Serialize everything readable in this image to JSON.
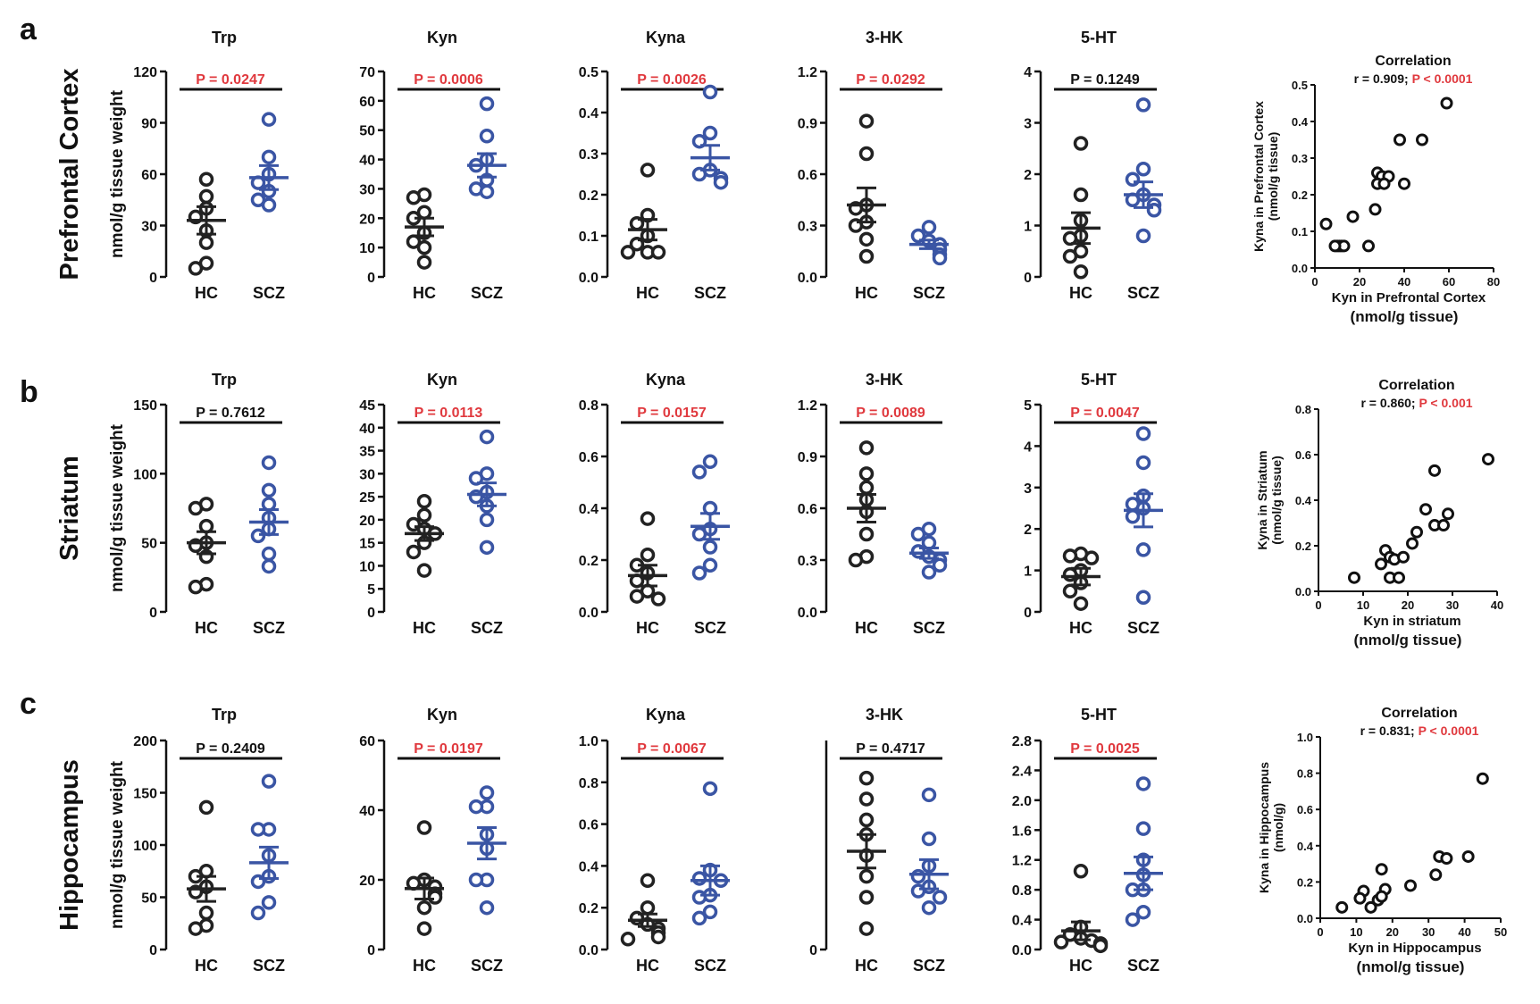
{
  "colors": {
    "hc": "#222222",
    "scz": "#3a55a4",
    "sig": "#e0393e",
    "ns": "#111111"
  },
  "rows": [
    {
      "letter": "a",
      "region": "Prefrontal Cortex",
      "ylabel": "nmol/g tissue weight",
      "corr": {
        "title": "Correlation",
        "r_text": "r = 0.909;",
        "p_text": "P < 0.0001",
        "xlabel": "Kyn in Prefrontal Cortex",
        "xlabel2": "(nmol/g tissue)",
        "ylabel": "Kyna in Prefrontal Cortex",
        "ylabel2": "(nmol/g tissue)"
      }
    },
    {
      "letter": "b",
      "region": "Striatum",
      "ylabel": "nmol/g tissue weight",
      "corr": {
        "title": "Correlation",
        "r_text": "r = 0.860;",
        "p_text": "P < 0.001",
        "xlabel": "Kyn in striatum",
        "xlabel2": "(nmol/g tissue)",
        "ylabel": "Kyna in Striatum",
        "ylabel2": "(nmol/g tissue)"
      }
    },
    {
      "letter": "c",
      "region": "Hippocampus",
      "ylabel": "nmol/g tissue weight",
      "corr": {
        "title": "Correlation",
        "r_text": "r = 0.831;",
        "p_text": "P < 0.0001",
        "xlabel": "Kyn in Hippocampus",
        "xlabel2": "(nmol/g tissue)",
        "ylabel": "Kyna in Hippocampus",
        "ylabel2": "(nmol/g)"
      }
    }
  ],
  "chart_data": [
    {
      "type": "scatter",
      "row": 0,
      "title": "Trp",
      "categories": [
        "HC",
        "SCZ"
      ],
      "ylim": [
        0,
        120
      ],
      "yticks": [
        "0",
        "30",
        "60",
        "90",
        "120"
      ],
      "p_text": "P = 0.0247",
      "significant": true,
      "series": [
        {
          "name": "HC",
          "values": [
            57,
            47,
            40,
            35,
            27,
            20,
            8,
            5
          ],
          "mean": 33,
          "sem": 8
        },
        {
          "name": "SCZ",
          "values": [
            92,
            70,
            60,
            55,
            50,
            45,
            42
          ],
          "mean": 58,
          "sem": 7
        }
      ]
    },
    {
      "type": "scatter",
      "row": 0,
      "title": "Kyn",
      "categories": [
        "HC",
        "SCZ"
      ],
      "ylim": [
        0,
        70
      ],
      "yticks": [
        "0",
        "10",
        "20",
        "30",
        "40",
        "50",
        "60",
        "70"
      ],
      "p_text": "P = 0.0006",
      "significant": true,
      "series": [
        {
          "name": "HC",
          "values": [
            28,
            27,
            22,
            20,
            15,
            12,
            10,
            5
          ],
          "mean": 17,
          "sem": 3
        },
        {
          "name": "SCZ",
          "values": [
            59,
            48,
            40,
            38,
            33,
            30,
            29
          ],
          "mean": 38,
          "sem": 4
        }
      ]
    },
    {
      "type": "scatter",
      "row": 0,
      "title": "Kyna",
      "categories": [
        "HC",
        "SCZ"
      ],
      "ylim": [
        0,
        0.5
      ],
      "yticks": [
        "0.0",
        "0.1",
        "0.2",
        "0.3",
        "0.4",
        "0.5"
      ],
      "p_text": "P = 0.0026",
      "significant": true,
      "series": [
        {
          "name": "HC",
          "values": [
            0.26,
            0.15,
            0.13,
            0.1,
            0.08,
            0.06,
            0.06,
            0.06
          ],
          "mean": 0.115,
          "sem": 0.025
        },
        {
          "name": "SCZ",
          "values": [
            0.45,
            0.35,
            0.33,
            0.26,
            0.25,
            0.24,
            0.23
          ],
          "mean": 0.29,
          "sem": 0.03
        }
      ]
    },
    {
      "type": "scatter",
      "row": 0,
      "title": "3-HK",
      "categories": [
        "HC",
        "SCZ"
      ],
      "ylim": [
        0,
        1.2
      ],
      "yticks": [
        "0.0",
        "0.3",
        "0.6",
        "0.9",
        "1.2"
      ],
      "p_text": "P = 0.0292",
      "significant": true,
      "series": [
        {
          "name": "HC",
          "values": [
            0.91,
            0.72,
            0.42,
            0.4,
            0.32,
            0.3,
            0.22,
            0.12
          ],
          "mean": 0.42,
          "sem": 0.1
        },
        {
          "name": "SCZ",
          "values": [
            0.29,
            0.24,
            0.21,
            0.19,
            0.16,
            0.13,
            0.11
          ],
          "mean": 0.19,
          "sem": 0.025
        }
      ]
    },
    {
      "type": "scatter",
      "row": 0,
      "title": "5-HT",
      "categories": [
        "HC",
        "SCZ"
      ],
      "ylim": [
        0,
        4
      ],
      "yticks": [
        "0",
        "1",
        "2",
        "3",
        "4"
      ],
      "p_text": "P = 0.1249",
      "significant": false,
      "series": [
        {
          "name": "HC",
          "values": [
            2.6,
            1.6,
            1.1,
            0.8,
            0.75,
            0.5,
            0.4,
            0.1
          ],
          "mean": 0.95,
          "sem": 0.3
        },
        {
          "name": "SCZ",
          "values": [
            3.35,
            2.1,
            1.9,
            1.6,
            1.5,
            1.4,
            1.3,
            0.8
          ],
          "mean": 1.6,
          "sem": 0.25
        }
      ]
    },
    {
      "type": "scatter",
      "row": 1,
      "title": "Trp",
      "categories": [
        "HC",
        "SCZ"
      ],
      "ylim": [
        0,
        150
      ],
      "yticks": [
        "0",
        "50",
        "100",
        "150"
      ],
      "p_text": "P = 0.7612",
      "significant": false,
      "series": [
        {
          "name": "HC",
          "values": [
            78,
            75,
            62,
            50,
            48,
            40,
            20,
            18
          ],
          "mean": 50,
          "sem": 8
        },
        {
          "name": "SCZ",
          "values": [
            108,
            88,
            78,
            68,
            60,
            55,
            42,
            33
          ],
          "mean": 65,
          "sem": 9
        }
      ]
    },
    {
      "type": "scatter",
      "row": 1,
      "title": "Kyn",
      "categories": [
        "HC",
        "SCZ"
      ],
      "ylim": [
        0,
        45
      ],
      "yticks": [
        "0",
        "5",
        "10",
        "15",
        "20",
        "25",
        "30",
        "35",
        "40",
        "45"
      ],
      "p_text": "P = 0.0113",
      "significant": true,
      "series": [
        {
          "name": "HC",
          "values": [
            24,
            21,
            19,
            18,
            17,
            15,
            13,
            9
          ],
          "mean": 17,
          "sem": 1.5
        },
        {
          "name": "SCZ",
          "values": [
            38,
            30,
            29,
            26,
            25,
            23,
            20,
            14
          ],
          "mean": 25.5,
          "sem": 2.5
        }
      ]
    },
    {
      "type": "scatter",
      "row": 1,
      "title": "Kyna",
      "categories": [
        "HC",
        "SCZ"
      ],
      "ylim": [
        0,
        0.8
      ],
      "yticks": [
        "0.0",
        "0.2",
        "0.4",
        "0.6",
        "0.8"
      ],
      "p_text": "P = 0.0157",
      "significant": true,
      "series": [
        {
          "name": "HC",
          "values": [
            0.36,
            0.22,
            0.18,
            0.15,
            0.12,
            0.08,
            0.06,
            0.05
          ],
          "mean": 0.14,
          "sem": 0.04
        },
        {
          "name": "SCZ",
          "values": [
            0.58,
            0.54,
            0.4,
            0.32,
            0.3,
            0.25,
            0.18,
            0.15
          ],
          "mean": 0.33,
          "sem": 0.05
        }
      ]
    },
    {
      "type": "scatter",
      "row": 1,
      "title": "3-HK",
      "categories": [
        "HC",
        "SCZ"
      ],
      "ylim": [
        0,
        1.2
      ],
      "yticks": [
        "0.0",
        "0.3",
        "0.6",
        "0.9",
        "1.2"
      ],
      "p_text": "P = 0.0089",
      "significant": true,
      "series": [
        {
          "name": "HC",
          "values": [
            0.95,
            0.8,
            0.72,
            0.65,
            0.58,
            0.45,
            0.32,
            0.3
          ],
          "mean": 0.6,
          "sem": 0.08
        },
        {
          "name": "SCZ",
          "values": [
            0.48,
            0.45,
            0.4,
            0.35,
            0.32,
            0.3,
            0.27,
            0.23
          ],
          "mean": 0.34,
          "sem": 0.03
        }
      ]
    },
    {
      "type": "scatter",
      "row": 1,
      "title": "5-HT",
      "categories": [
        "HC",
        "SCZ"
      ],
      "ylim": [
        0,
        5
      ],
      "yticks": [
        "0",
        "1",
        "2",
        "3",
        "4",
        "5"
      ],
      "p_text": "P = 0.0047",
      "significant": true,
      "series": [
        {
          "name": "HC",
          "values": [
            1.4,
            1.35,
            1.3,
            1.0,
            0.9,
            0.7,
            0.5,
            0.2
          ],
          "mean": 0.85,
          "sem": 0.2
        },
        {
          "name": "SCZ",
          "values": [
            4.3,
            3.6,
            2.8,
            2.6,
            2.5,
            2.3,
            1.5,
            0.35
          ],
          "mean": 2.45,
          "sem": 0.4
        }
      ]
    },
    {
      "type": "scatter",
      "row": 2,
      "title": "Trp",
      "categories": [
        "HC",
        "SCZ"
      ],
      "ylim": [
        0,
        200
      ],
      "yticks": [
        "0",
        "50",
        "100",
        "150",
        "200"
      ],
      "p_text": "P = 0.2409",
      "significant": false,
      "series": [
        {
          "name": "HC",
          "values": [
            136,
            75,
            70,
            60,
            55,
            35,
            23,
            20
          ],
          "mean": 58,
          "sem": 12
        },
        {
          "name": "SCZ",
          "values": [
            161,
            115,
            115,
            90,
            70,
            65,
            45,
            35
          ],
          "mean": 83,
          "sem": 15
        }
      ]
    },
    {
      "type": "scatter",
      "row": 2,
      "title": "Kyn",
      "categories": [
        "HC",
        "SCZ"
      ],
      "ylim": [
        0,
        60
      ],
      "yticks": [
        "0",
        "20",
        "40",
        "60"
      ],
      "p_text": "P = 0.0197",
      "significant": true,
      "series": [
        {
          "name": "HC",
          "values": [
            35,
            20,
            19,
            18,
            16,
            15,
            12,
            6
          ],
          "mean": 17.5,
          "sem": 3
        },
        {
          "name": "SCZ",
          "values": [
            45,
            41,
            41,
            33,
            29,
            20,
            20,
            12
          ],
          "mean": 30.5,
          "sem": 4.5
        }
      ]
    },
    {
      "type": "scatter",
      "row": 2,
      "title": "Kyna",
      "categories": [
        "HC",
        "SCZ"
      ],
      "ylim": [
        0,
        1.0
      ],
      "yticks": [
        "0.0",
        "0.2",
        "0.4",
        "0.6",
        "0.8",
        "1.0"
      ],
      "p_text": "P = 0.0067",
      "significant": true,
      "series": [
        {
          "name": "HC",
          "values": [
            0.33,
            0.2,
            0.15,
            0.12,
            0.1,
            0.08,
            0.06,
            0.05
          ],
          "mean": 0.14,
          "sem": 0.03
        },
        {
          "name": "SCZ",
          "values": [
            0.77,
            0.38,
            0.34,
            0.33,
            0.26,
            0.25,
            0.18,
            0.15
          ],
          "mean": 0.33,
          "sem": 0.07
        }
      ]
    },
    {
      "type": "scatter",
      "row": 2,
      "title": "3-HK",
      "categories": [
        "HC",
        "SCZ"
      ],
      "ylim": [
        0,
        1.0
      ],
      "yticks": [],
      "p_text": "P = 0.4717",
      "significant": false,
      "series": [
        {
          "name": "HC",
          "values": [
            0.82,
            0.72,
            0.62,
            0.55,
            0.45,
            0.35,
            0.25,
            0.1
          ],
          "mean": 0.47,
          "sem": 0.08
        },
        {
          "name": "SCZ",
          "values": [
            0.74,
            0.53,
            0.4,
            0.35,
            0.3,
            0.28,
            0.25,
            0.2
          ],
          "mean": 0.36,
          "sem": 0.07
        }
      ]
    },
    {
      "type": "scatter",
      "row": 2,
      "title": "5-HT",
      "categories": [
        "HC",
        "SCZ"
      ],
      "ylim": [
        0,
        2.8
      ],
      "yticks": [
        "0.0",
        "0.4",
        "0.8",
        "1.2",
        "1.6",
        "2.0",
        "2.4",
        "2.8"
      ],
      "p_text": "P = 0.0025",
      "significant": true,
      "series": [
        {
          "name": "HC",
          "values": [
            1.05,
            0.3,
            0.2,
            0.15,
            0.12,
            0.1,
            0.08,
            0.05
          ],
          "mean": 0.25,
          "sem": 0.12
        },
        {
          "name": "SCZ",
          "values": [
            2.22,
            1.62,
            1.2,
            1.0,
            0.8,
            0.8,
            0.5,
            0.4
          ],
          "mean": 1.02,
          "sem": 0.22
        }
      ]
    },
    {
      "type": "scatter",
      "row": 0,
      "subtype": "correlation",
      "xlim": [
        0,
        80
      ],
      "ylim": [
        0,
        0.5
      ],
      "xticks": [
        "0",
        "20",
        "40",
        "60",
        "80"
      ],
      "yticks": [
        "0.0",
        "0.1",
        "0.2",
        "0.3",
        "0.4",
        "0.5"
      ],
      "points": [
        [
          59,
          0.45
        ],
        [
          38,
          0.35
        ],
        [
          48,
          0.35
        ],
        [
          28,
          0.26
        ],
        [
          30,
          0.25
        ],
        [
          33,
          0.25
        ],
        [
          28,
          0.23
        ],
        [
          31,
          0.23
        ],
        [
          40,
          0.23
        ],
        [
          27,
          0.16
        ],
        [
          17,
          0.14
        ],
        [
          5,
          0.12
        ],
        [
          24,
          0.06
        ],
        [
          10,
          0.06
        ],
        [
          11,
          0.06
        ],
        [
          12,
          0.06
        ],
        [
          13,
          0.06
        ],
        [
          9,
          0.06
        ]
      ]
    },
    {
      "type": "scatter",
      "row": 1,
      "subtype": "correlation",
      "xlim": [
        0,
        40
      ],
      "ylim": [
        0,
        0.8
      ],
      "xticks": [
        "0",
        "10",
        "20",
        "30",
        "40"
      ],
      "yticks": [
        "0.0",
        "0.2",
        "0.4",
        "0.6",
        "0.8"
      ],
      "points": [
        [
          38,
          0.58
        ],
        [
          26,
          0.53
        ],
        [
          24,
          0.36
        ],
        [
          29,
          0.34
        ],
        [
          26,
          0.29
        ],
        [
          28,
          0.29
        ],
        [
          22,
          0.26
        ],
        [
          21,
          0.21
        ],
        [
          15,
          0.18
        ],
        [
          16,
          0.15
        ],
        [
          17,
          0.14
        ],
        [
          19,
          0.15
        ],
        [
          14,
          0.12
        ],
        [
          16,
          0.06
        ],
        [
          18,
          0.06
        ],
        [
          8,
          0.06
        ]
      ]
    },
    {
      "type": "scatter",
      "row": 2,
      "subtype": "correlation",
      "xlim": [
        0,
        50
      ],
      "ylim": [
        0,
        1.0
      ],
      "xticks": [
        "0",
        "10",
        "20",
        "30",
        "40",
        "50"
      ],
      "yticks": [
        "0.0",
        "0.2",
        "0.4",
        "0.6",
        "0.8",
        "1.0"
      ],
      "points": [
        [
          45,
          0.77
        ],
        [
          33,
          0.34
        ],
        [
          35,
          0.33
        ],
        [
          41,
          0.34
        ],
        [
          32,
          0.24
        ],
        [
          17,
          0.27
        ],
        [
          12,
          0.15
        ],
        [
          18,
          0.16
        ],
        [
          25,
          0.18
        ],
        [
          11,
          0.11
        ],
        [
          14,
          0.06
        ],
        [
          16,
          0.1
        ],
        [
          17,
          0.12
        ],
        [
          6,
          0.06
        ]
      ]
    }
  ]
}
